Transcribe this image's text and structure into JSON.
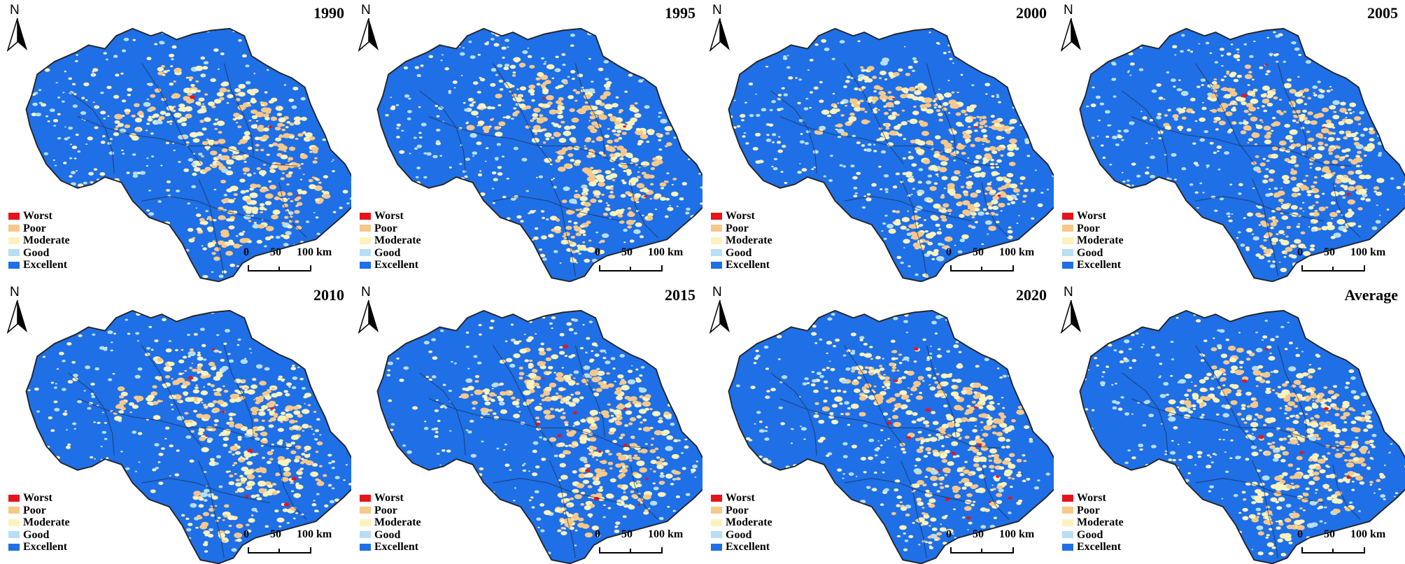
{
  "panels": [
    {
      "label": "1990",
      "seed": 11,
      "red": 3
    },
    {
      "label": "1995",
      "seed": 23,
      "red": 3
    },
    {
      "label": "2000",
      "seed": 37,
      "red": 3
    },
    {
      "label": "2005",
      "seed": 41,
      "red": 4
    },
    {
      "label": "2010",
      "seed": 53,
      "red": 9
    },
    {
      "label": "2015",
      "seed": 67,
      "red": 12
    },
    {
      "label": "2020",
      "seed": 79,
      "red": 14
    },
    {
      "label": "Average",
      "seed": 83,
      "red": 6
    }
  ],
  "north_label": "N",
  "legend": [
    {
      "label": "Worst",
      "color": "#e8141c"
    },
    {
      "label": "Poor",
      "color": "#f6c88a"
    },
    {
      "label": "Moderate",
      "color": "#fbf3bd"
    },
    {
      "label": "Good",
      "color": "#b7def2"
    },
    {
      "label": "Excellent",
      "color": "#1f6fe6"
    }
  ],
  "scale_bar": {
    "ticks": [
      "0",
      "50",
      "100 km"
    ]
  },
  "colors": {
    "land": "#1f6fe6",
    "outline": "#222222"
  }
}
